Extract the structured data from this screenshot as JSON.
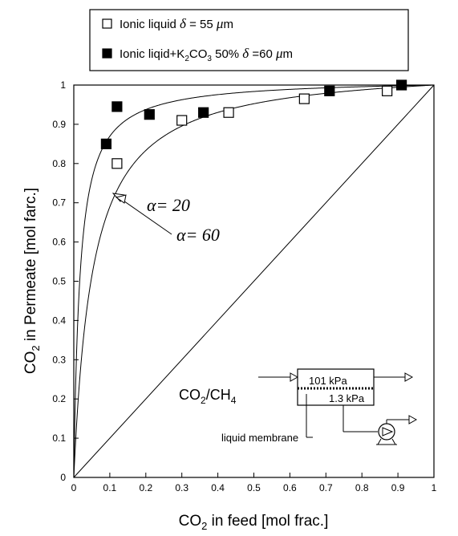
{
  "chart_data": {
    "type": "scatter",
    "xlabel": "CO",
    "xlabel_sub": "2",
    "xlabel_rest": " in feed [mol frac.]",
    "ylabel": "CO",
    "ylabel_sub": "2",
    "ylabel_rest": " in Permeate [mol farc.]",
    "xlim": [
      0,
      1
    ],
    "ylim": [
      0,
      1
    ],
    "x_ticks": [
      "0",
      "0.1",
      "0.2",
      "0.3",
      "0.4",
      "0.5",
      "0.6",
      "0.7",
      "0.8",
      "0.9",
      "1"
    ],
    "y_ticks": [
      "0",
      "0.1",
      "0.2",
      "0.3",
      "0.4",
      "0.5",
      "0.6",
      "0.7",
      "0.8",
      "0.9",
      "1"
    ],
    "legend_position": "top",
    "series": [
      {
        "name": "Ionic liquid δ = 55 μm",
        "marker": "open-square",
        "x": [
          0.12,
          0.3,
          0.43,
          0.64,
          0.87
        ],
        "y": [
          0.8,
          0.91,
          0.93,
          0.965,
          0.985
        ]
      },
      {
        "name": "Ionic liqid+K2CO3 50% δ =60 μm",
        "marker": "filled-square",
        "x": [
          0.09,
          0.12,
          0.21,
          0.36,
          0.71,
          0.91
        ],
        "y": [
          0.85,
          0.945,
          0.925,
          0.93,
          0.985,
          1.0
        ]
      }
    ],
    "curves": [
      {
        "label": "α= 60",
        "alpha": 60
      },
      {
        "label": "α= 20",
        "alpha": 20
      }
    ],
    "diagonal": true
  },
  "legend": {
    "item1": {
      "prefix": "Ionic liquid  ",
      "delta": "δ",
      "mid": " = 55  ",
      "mu": "μ",
      "suffix": "m"
    },
    "item2": {
      "prefix": "Ionic liqid+K",
      "sub1": "2",
      "mid1": "CO",
      "sub2": "3",
      "mid2": "  50%  ",
      "delta": "δ",
      "mid3": " =60  ",
      "mu": "μ",
      "suffix": "m"
    }
  },
  "annotations": {
    "alpha60": "α= 60",
    "alpha20": "α= 20"
  },
  "inset": {
    "gas": "CO",
    "gas_sub1": "2",
    "gas_mid": "/CH",
    "gas_sub2": "4",
    "feed_pressure": "101 kPa",
    "permeate_pressure": "1.3 kPa",
    "membrane_label": "liquid membrane"
  }
}
